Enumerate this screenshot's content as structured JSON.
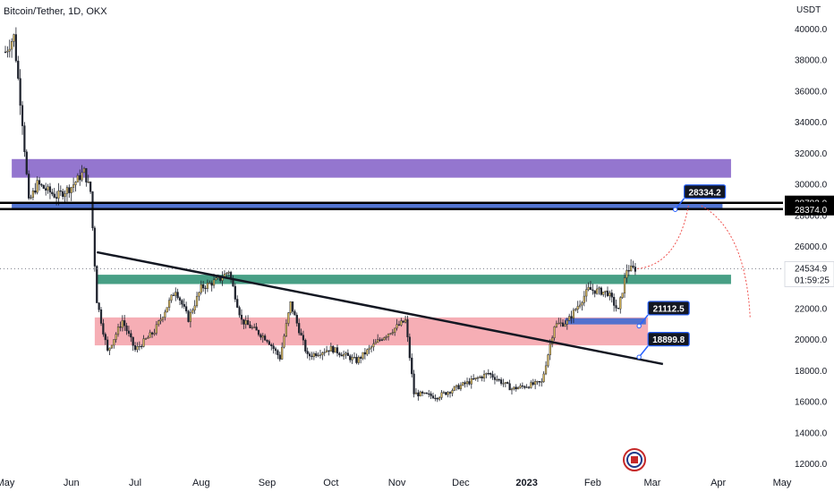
{
  "header": {
    "title": "Bitcoin/Tether, 1D, OKX"
  },
  "axis": {
    "currency": "USDT"
  },
  "colors": {
    "bull": "#d4b45a",
    "bear": "#1e222d",
    "wick": "#1e222d",
    "purple_zone": "#8e6fcc",
    "blue_zone": "#4a6ed0",
    "green_zone": "#3d9a7e",
    "red_zone": "#f4a0a8",
    "trendline": "#131722",
    "label_bg": "#131722",
    "label_border": "#2962ff",
    "projection": "#ef5350"
  },
  "chart_data": {
    "type": "candlestick",
    "symbol": "Bitcoin/Tether",
    "timeframe": "1D",
    "exchange": "OKX",
    "ylim": [
      11500,
      42000
    ],
    "y_ticks": [
      "40000.0",
      "38000.0",
      "36000.0",
      "34000.0",
      "32000.0",
      "30000.0",
      "28000.0",
      "26000.0",
      "22000.0",
      "20000.0",
      "18000.0",
      "16000.0",
      "14000.0",
      "12000.0"
    ],
    "x_ticks": [
      "May",
      "Jun",
      "Jul",
      "Aug",
      "Sep",
      "Oct",
      "Nov",
      "Dec",
      "2023",
      "Feb",
      "Mar",
      "Apr",
      "May"
    ],
    "x_tick_dates": [
      "2022-05-01",
      "2022-06-01",
      "2022-07-01",
      "2022-08-01",
      "2022-09-01",
      "2022-10-01",
      "2022-11-01",
      "2022-12-01",
      "2023-01-01",
      "2023-02-01",
      "2023-03-01",
      "2023-04-01",
      "2023-05-01"
    ],
    "price_path": [
      [
        "2022-05-01",
        38500
      ],
      [
        "2022-05-05",
        39500
      ],
      [
        "2022-05-09",
        34000
      ],
      [
        "2022-05-12",
        28800
      ],
      [
        "2022-05-16",
        30000
      ],
      [
        "2022-05-25",
        29200
      ],
      [
        "2022-06-01",
        29800
      ],
      [
        "2022-06-07",
        30800
      ],
      [
        "2022-06-10",
        29500
      ],
      [
        "2022-06-13",
        22500
      ],
      [
        "2022-06-18",
        19200
      ],
      [
        "2022-06-25",
        21200
      ],
      [
        "2022-07-01",
        19300
      ],
      [
        "2022-07-10",
        20500
      ],
      [
        "2022-07-20",
        23200
      ],
      [
        "2022-07-26",
        21300
      ],
      [
        "2022-08-01",
        23300
      ],
      [
        "2022-08-10",
        23900
      ],
      [
        "2022-08-14",
        24400
      ],
      [
        "2022-08-20",
        21200
      ],
      [
        "2022-09-01",
        20000
      ],
      [
        "2022-09-07",
        18800
      ],
      [
        "2022-09-12",
        22300
      ],
      [
        "2022-09-20",
        18900
      ],
      [
        "2022-10-01",
        19400
      ],
      [
        "2022-10-13",
        18600
      ],
      [
        "2022-10-25",
        20100
      ],
      [
        "2022-11-05",
        21200
      ],
      [
        "2022-11-09",
        16500
      ],
      [
        "2022-11-20",
        16300
      ],
      [
        "2022-12-01",
        17000
      ],
      [
        "2022-12-14",
        17800
      ],
      [
        "2022-12-25",
        16800
      ],
      [
        "2023-01-08",
        17200
      ],
      [
        "2023-01-14",
        20900
      ],
      [
        "2023-01-20",
        21100
      ],
      [
        "2023-01-30",
        23200
      ],
      [
        "2023-02-08",
        23000
      ],
      [
        "2023-02-13",
        21800
      ],
      [
        "2023-02-17",
        24500
      ],
      [
        "2023-02-21",
        24534.9
      ]
    ],
    "zones": [
      {
        "name": "purple",
        "from": "2022-05-04",
        "to": "2023-04-07",
        "low": 30400,
        "high": 31600
      },
      {
        "name": "blue",
        "from": "2022-05-04",
        "to": "2023-04-03",
        "low": 28350,
        "high": 28750
      },
      {
        "name": "green",
        "from": "2022-06-13",
        "to": "2023-04-07",
        "low": 23550,
        "high": 24150
      },
      {
        "name": "red",
        "from": "2022-06-12",
        "to": "2023-02-27",
        "low": 19600,
        "high": 21400
      },
      {
        "name": "blue-small",
        "from": "2023-01-19",
        "to": "2023-02-26",
        "low": 20950,
        "high": 21350
      }
    ],
    "horizontal_lines": [
      28783.0,
      28374.0
    ],
    "trendline": {
      "from": [
        "2022-06-13",
        25600
      ],
      "to": [
        "2023-03-06",
        18400
      ]
    },
    "labels": [
      {
        "text": "28334.2",
        "date": "2023-03-16",
        "price": 29500
      },
      {
        "text": "21112.5",
        "date": "2023-02-27",
        "price": 22000
      },
      {
        "text": "18899.8",
        "date": "2023-02-27",
        "price": 20000
      }
    ],
    "price_tags": [
      {
        "text": "28783.0",
        "price": 28783.0,
        "style": "dark"
      },
      {
        "text": "28374.0",
        "price": 28374.0,
        "style": "dark"
      }
    ],
    "current": {
      "price_text": "24534.9",
      "countdown": "01:59:25",
      "price": 24534.9
    }
  }
}
